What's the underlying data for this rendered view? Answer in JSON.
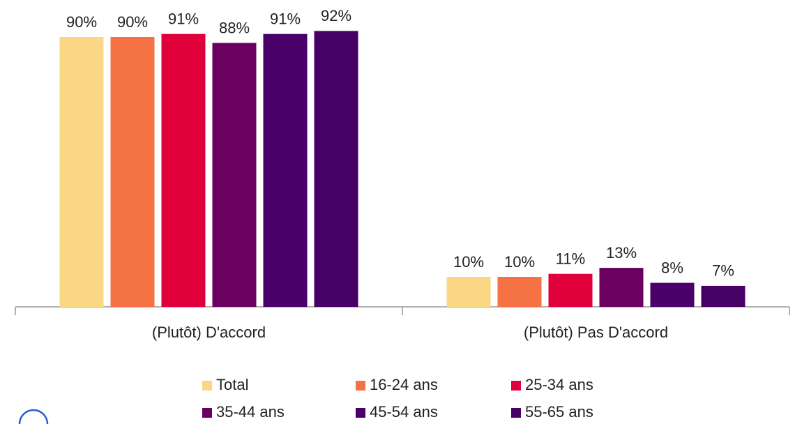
{
  "chart_data": {
    "type": "bar",
    "categories": [
      "(Plutôt) D'accord",
      "(Plutôt) Pas D'accord"
    ],
    "series": [
      {
        "name": "Total",
        "color": "#fad784",
        "values": [
          90,
          10
        ],
        "value_labels": [
          "90%",
          "10%"
        ]
      },
      {
        "name": "16-24 ans",
        "color": "#f47244",
        "values": [
          90,
          10
        ],
        "value_labels": [
          "90%",
          "10%"
        ]
      },
      {
        "name": "25-34 ans",
        "color": "#e0003c",
        "values": [
          91,
          11
        ],
        "value_labels": [
          "91%",
          "11%"
        ]
      },
      {
        "name": "35-44 ans",
        "color": "#6b0060",
        "values": [
          88,
          13
        ],
        "value_labels": [
          "88%",
          "13%"
        ]
      },
      {
        "name": "45-54 ans",
        "color": "#4a006a",
        "values": [
          91,
          8
        ],
        "value_labels": [
          "91%",
          "8%"
        ]
      },
      {
        "name": "55-65 ans",
        "color": "#460066",
        "values": [
          92,
          7
        ],
        "value_labels": [
          "92%",
          "7%"
        ]
      }
    ],
    "ylim": [
      0,
      100
    ]
  }
}
